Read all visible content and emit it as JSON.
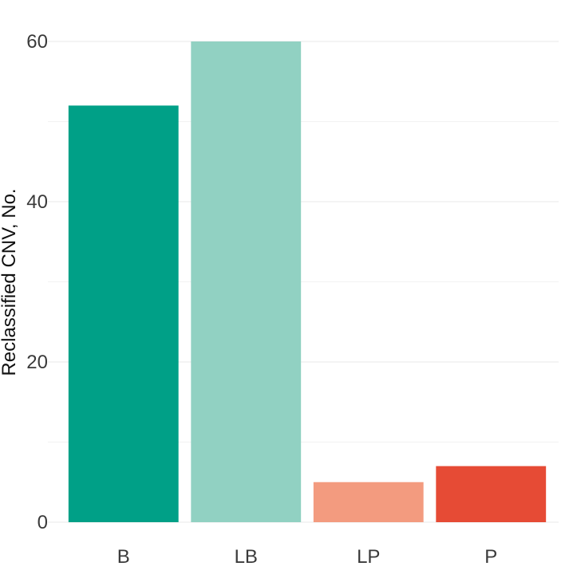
{
  "chart_data": {
    "type": "bar",
    "title": "",
    "xlabel": "",
    "ylabel": "Reclassified CNV, No.",
    "categories": [
      "B",
      "LB",
      "LP",
      "P"
    ],
    "values": [
      52,
      60,
      5,
      7
    ],
    "colors": [
      "#00A087",
      "#91D1C2",
      "#F39B7F",
      "#E64B35"
    ],
    "ylim": [
      0,
      61
    ],
    "yticks": [
      0,
      20,
      40,
      60
    ],
    "minor_yticks": [
      10,
      30,
      50
    ],
    "grid": true,
    "legend": "none"
  }
}
